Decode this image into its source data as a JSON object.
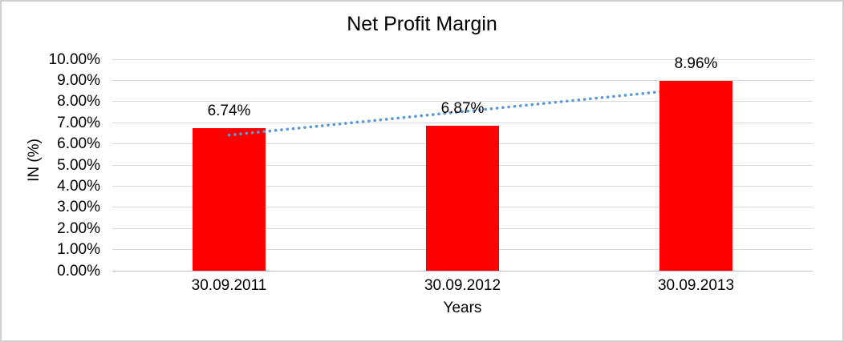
{
  "chart_data": {
    "type": "bar",
    "title": "Net Profit Margin",
    "categories": [
      "30.09.2011",
      "30.09.2012",
      "30.09.2013"
    ],
    "values": [
      6.74,
      6.87,
      8.96
    ],
    "value_labels": [
      "6.74%",
      "6.87%",
      "8.96%"
    ],
    "xlabel": "Years",
    "ylabel": "IN (%)",
    "ylim": [
      0,
      10
    ],
    "ytick_labels": [
      "10.00%",
      "9.00%",
      "8.00%",
      "7.00%",
      "6.00%",
      "5.00%",
      "4.00%",
      "3.00%",
      "2.00%",
      "1.00%",
      "0.00%"
    ],
    "grid": true,
    "legend": "none",
    "bar_color": "#FF0000",
    "gridline_color": "#D9D9D9",
    "axis_line_color": "#BFBFBF",
    "text_color": "#000000",
    "trendline": {
      "type": "linear",
      "style": "dotted",
      "color": "#5B9BD5"
    }
  }
}
